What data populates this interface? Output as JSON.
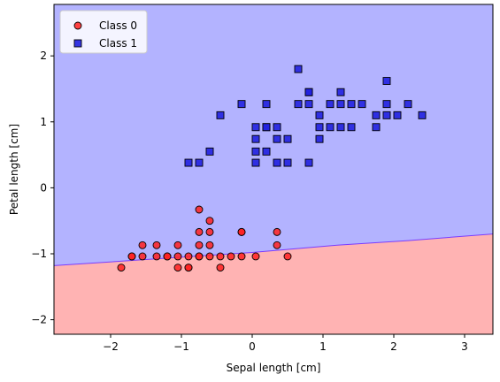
{
  "chart_data": {
    "type": "scatter",
    "title": "",
    "xlabel": "Sepal length [cm]",
    "ylabel": "Petal length [cm]",
    "xlim": [
      -2.8,
      3.4
    ],
    "ylim": [
      -2.22,
      2.78
    ],
    "xticks": [
      -2,
      -1,
      0,
      1,
      2,
      3
    ],
    "yticks": [
      -2,
      -1,
      0,
      1,
      2
    ],
    "grid": false,
    "legend": "top-left",
    "decision_boundary": {
      "points": [
        [
          -2.8,
          -1.18
        ],
        [
          0.0,
          -0.98
        ],
        [
          1.2,
          -0.87
        ],
        [
          2.2,
          -0.8
        ],
        [
          3.4,
          -0.7
        ]
      ],
      "region_above": {
        "label": "Class 1",
        "color": "#b3b3ff"
      },
      "region_below": {
        "label": "Class 0",
        "color": "#ffb3b3"
      }
    },
    "series": [
      {
        "name": "Class 0",
        "marker": "circle",
        "color": "#ff2020",
        "points": [
          [
            -1.85,
            -1.21
          ],
          [
            -1.7,
            -1.04
          ],
          [
            -1.55,
            -0.87
          ],
          [
            -1.55,
            -1.04
          ],
          [
            -1.35,
            -0.87
          ],
          [
            -1.35,
            -1.04
          ],
          [
            -1.2,
            -1.04
          ],
          [
            -1.05,
            -0.87
          ],
          [
            -1.05,
            -1.04
          ],
          [
            -1.05,
            -1.21
          ],
          [
            -0.9,
            -1.04
          ],
          [
            -0.9,
            -1.21
          ],
          [
            -0.75,
            -0.33
          ],
          [
            -0.75,
            -0.67
          ],
          [
            -0.75,
            -0.87
          ],
          [
            -0.75,
            -1.04
          ],
          [
            -0.6,
            -0.5
          ],
          [
            -0.6,
            -0.67
          ],
          [
            -0.6,
            -0.87
          ],
          [
            -0.6,
            -1.04
          ],
          [
            -0.45,
            -1.04
          ],
          [
            -0.45,
            -1.21
          ],
          [
            -0.3,
            -1.04
          ],
          [
            -0.15,
            -0.67
          ],
          [
            -0.15,
            -1.04
          ],
          [
            0.05,
            -1.04
          ],
          [
            0.35,
            -0.67
          ],
          [
            0.35,
            -0.87
          ],
          [
            0.5,
            -1.04
          ],
          [
            -0.15,
            -0.67
          ],
          [
            -1.7,
            -1.04
          ],
          [
            -1.2,
            -1.04
          ],
          [
            -0.9,
            -1.21
          ],
          [
            -0.75,
            -1.04
          ]
        ]
      },
      {
        "name": "Class 1",
        "marker": "square",
        "color": "#2020e0",
        "points": [
          [
            -0.9,
            0.38
          ],
          [
            -0.75,
            0.38
          ],
          [
            -0.6,
            0.55
          ],
          [
            -0.45,
            1.1
          ],
          [
            -0.15,
            1.27
          ],
          [
            0.05,
            0.38
          ],
          [
            0.05,
            0.55
          ],
          [
            0.05,
            0.74
          ],
          [
            0.05,
            0.92
          ],
          [
            0.2,
            0.55
          ],
          [
            0.2,
            0.92
          ],
          [
            0.2,
            1.27
          ],
          [
            0.35,
            0.38
          ],
          [
            0.35,
            0.74
          ],
          [
            0.35,
            0.92
          ],
          [
            0.5,
            0.38
          ],
          [
            0.5,
            0.74
          ],
          [
            0.65,
            1.27
          ],
          [
            0.65,
            1.8
          ],
          [
            0.8,
            0.38
          ],
          [
            0.8,
            1.27
          ],
          [
            0.8,
            1.45
          ],
          [
            0.95,
            0.74
          ],
          [
            0.95,
            0.92
          ],
          [
            0.95,
            1.1
          ],
          [
            1.1,
            0.92
          ],
          [
            1.1,
            1.27
          ],
          [
            1.25,
            0.92
          ],
          [
            1.25,
            1.27
          ],
          [
            1.25,
            1.45
          ],
          [
            1.4,
            0.92
          ],
          [
            1.4,
            1.27
          ],
          [
            1.55,
            1.27
          ],
          [
            1.75,
            0.92
          ],
          [
            1.75,
            1.1
          ],
          [
            1.9,
            1.1
          ],
          [
            1.9,
            1.27
          ],
          [
            1.9,
            1.62
          ],
          [
            2.05,
            1.1
          ],
          [
            2.2,
            1.27
          ],
          [
            2.4,
            1.1
          ],
          [
            0.8,
            1.45
          ],
          [
            0.2,
            0.92
          ]
        ]
      }
    ]
  }
}
